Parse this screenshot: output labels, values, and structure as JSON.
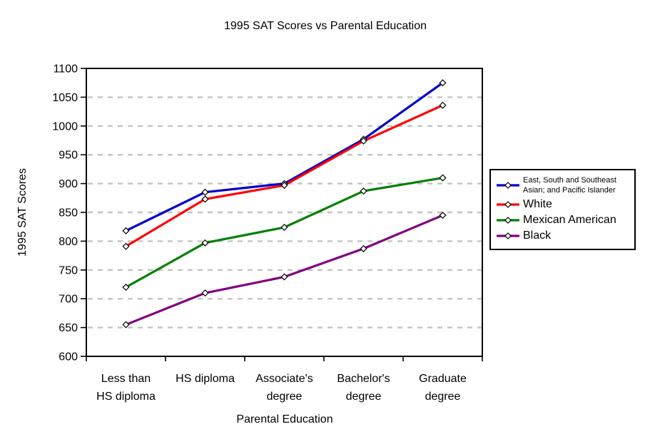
{
  "chart_data": {
    "type": "line",
    "title": "1995 SAT Scores vs Parental Education",
    "xlabel": "Parental Education",
    "ylabel": "1995 SAT Scores",
    "ylim": [
      600,
      1100
    ],
    "ytick_step": 50,
    "grid": "horizontal-dashed",
    "gridline_color": "#c4c4c4",
    "legend_position": "right",
    "marker": "diamond-white-black-outline",
    "categories": [
      "Less than HS diploma",
      "HS diploma",
      "Associate's degree",
      "Bachelor's degree",
      "Graduate degree"
    ],
    "categories_wrapped": [
      [
        "Less than",
        "HS diploma"
      ],
      [
        "HS diploma"
      ],
      [
        "Associate's",
        "degree"
      ],
      [
        "Bachelor's",
        "degree"
      ],
      [
        "Graduate",
        "degree"
      ]
    ],
    "series": [
      {
        "name": "East, South and Southeast Asian; and Pacific Islander",
        "legend_lines": [
          "East, South and Southeast",
          "Asian; and Pacific Islander"
        ],
        "color": "#0000cc",
        "values": [
          818,
          885,
          900,
          977,
          1075
        ]
      },
      {
        "name": "White",
        "legend_lines": [
          "White"
        ],
        "color": "#ff0000",
        "values": [
          791,
          873,
          897,
          974,
          1036
        ]
      },
      {
        "name": "Mexican American",
        "legend_lines": [
          "Mexican American"
        ],
        "color": "#008000",
        "values": [
          720,
          797,
          824,
          887,
          910
        ]
      },
      {
        "name": "Black",
        "legend_lines": [
          "Black"
        ],
        "color": "#800080",
        "values": [
          655,
          710,
          738,
          787,
          845
        ]
      }
    ]
  }
}
